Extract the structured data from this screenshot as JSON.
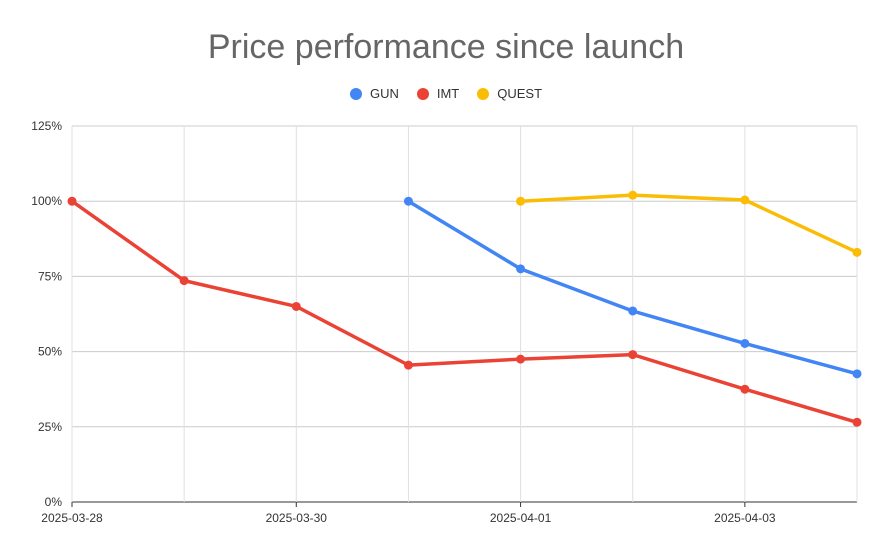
{
  "chart_data": {
    "type": "line",
    "title": "Price performance since launch",
    "xlabel": "",
    "ylabel": "",
    "x": [
      "2025-03-28",
      "2025-03-29",
      "2025-03-30",
      "2025-03-31",
      "2025-04-01",
      "2025-04-02",
      "2025-04-03",
      "2025-04-04"
    ],
    "x_tick_labels": [
      "2025-03-28",
      "2025-03-30",
      "2025-04-01",
      "2025-04-03"
    ],
    "y_tick_labels": [
      "0%",
      "25%",
      "50%",
      "75%",
      "100%",
      "125%"
    ],
    "ylim": [
      0,
      125
    ],
    "y_unit": "%",
    "grid": true,
    "legend_position": "top",
    "series": [
      {
        "name": "GUN",
        "color": "#4285F4",
        "values": [
          null,
          null,
          null,
          100,
          77.5,
          63.5,
          52.7,
          42.6
        ]
      },
      {
        "name": "IMT",
        "color": "#EA4335",
        "values": [
          100,
          73.6,
          65.0,
          45.5,
          47.5,
          49.0,
          37.5,
          26.5
        ]
      },
      {
        "name": "QUEST",
        "color": "#FBBC04",
        "values": [
          null,
          null,
          null,
          null,
          100,
          102,
          100.4,
          83.0
        ]
      }
    ]
  }
}
